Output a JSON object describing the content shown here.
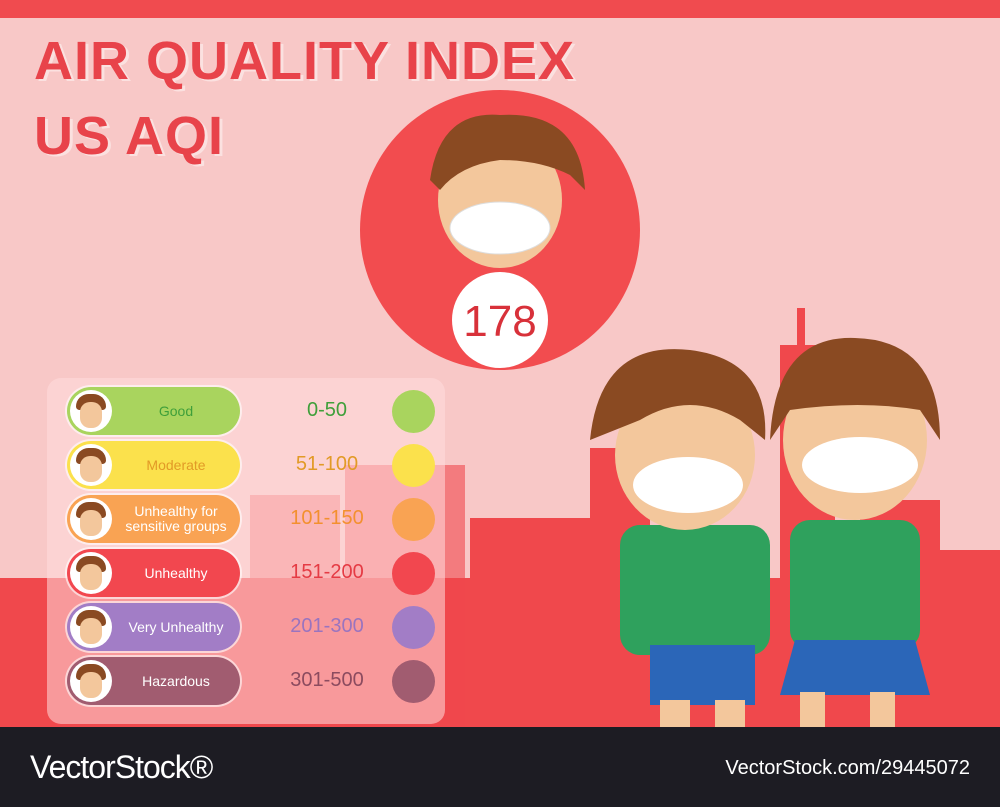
{
  "header": {
    "title_line1": "AIR QUALITY INDEX",
    "title_line2": "US AQI"
  },
  "current": {
    "value": "178"
  },
  "levels": [
    {
      "label": "Good",
      "range": "0-50",
      "color": "#a9d45e",
      "text_color": "#3f9f3a"
    },
    {
      "label": "Moderate",
      "range": "51-100",
      "color": "#fbe14c",
      "text_color": "#e29a26"
    },
    {
      "label": "Unhealthy for sensitive groups",
      "range": "101-150",
      "color": "#f9a353",
      "text_color": "#f3902f"
    },
    {
      "label": "Unhealthy",
      "range": "151-200",
      "color": "#f2474f",
      "text_color": "#e53b44"
    },
    {
      "label": "Very Unhealthy",
      "range": "201-300",
      "color": "#a27dc6",
      "text_color": "#9a74bf"
    },
    {
      "label": "Hazardous",
      "range": "301-500",
      "color": "#a15c70",
      "text_color": "#8c4b5f"
    }
  ],
  "footer": {
    "brand": "VectorStock®",
    "id": "VectorStock.com/29445072"
  }
}
